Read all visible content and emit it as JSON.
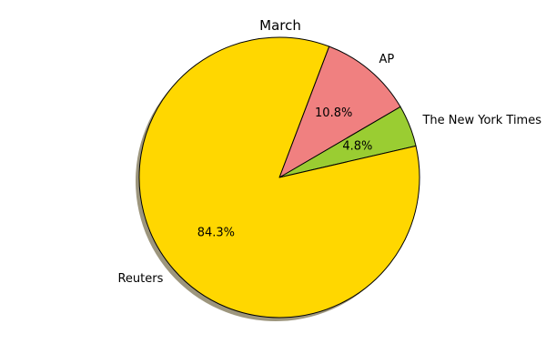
{
  "chart_data": {
    "type": "pie",
    "title": "March",
    "slices": [
      {
        "label": "The New York Times",
        "value": 4.8,
        "pct_label": "4.8%",
        "color": "#9acd32"
      },
      {
        "label": "AP",
        "value": 10.8,
        "pct_label": "10.8%",
        "color": "#f08080"
      },
      {
        "label": "Reuters",
        "value": 84.3,
        "pct_label": "84.3%",
        "color": "#ffd700"
      }
    ],
    "shadow": true,
    "legend": "none"
  }
}
